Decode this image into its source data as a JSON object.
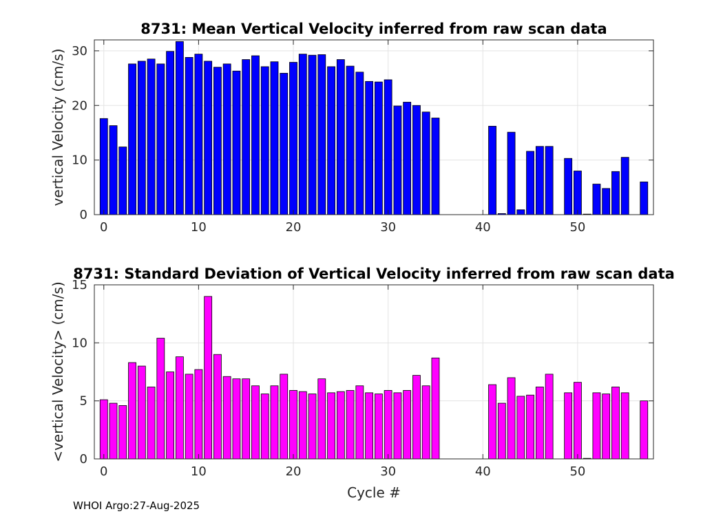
{
  "footer": "WHOI Argo:27-Aug-2025",
  "chart_data": [
    {
      "type": "bar",
      "title": "8731: Mean Vertical Velocity inferred from raw scan data",
      "xlabel": "",
      "ylabel": "vertical Velocity (cm/s)",
      "xlim": [
        -1,
        58
      ],
      "ylim": [
        0,
        32
      ],
      "xticks": [
        0,
        10,
        20,
        30,
        40,
        50
      ],
      "yticks": [
        0,
        10,
        20,
        30
      ],
      "grid": true,
      "bar_color": "#0000ff",
      "x": [
        0,
        1,
        2,
        3,
        4,
        5,
        6,
        7,
        8,
        9,
        10,
        11,
        12,
        13,
        14,
        15,
        16,
        17,
        18,
        19,
        20,
        21,
        22,
        23,
        24,
        25,
        26,
        27,
        28,
        29,
        30,
        31,
        32,
        33,
        34,
        35,
        41,
        42,
        43,
        44,
        45,
        46,
        47,
        49,
        50,
        51,
        52,
        53,
        54,
        55,
        57
      ],
      "values": [
        17.6,
        16.3,
        12.4,
        27.6,
        28.1,
        28.5,
        27.6,
        29.9,
        31.7,
        28.8,
        29.4,
        28.1,
        27.0,
        27.6,
        26.3,
        28.4,
        29.1,
        27.1,
        28.0,
        25.9,
        27.9,
        29.4,
        29.2,
        29.3,
        27.1,
        28.4,
        27.2,
        26.1,
        24.4,
        24.3,
        24.7,
        19.9,
        20.6,
        20.0,
        18.8,
        17.7,
        16.2,
        0.2,
        15.1,
        0.9,
        11.6,
        12.5,
        12.5,
        10.3,
        8.0,
        0.1,
        5.6,
        4.8,
        7.9,
        10.5,
        6.0
      ]
    },
    {
      "type": "bar",
      "title": "8731: Standard Deviation of Vertical Velocity inferred from raw scan data",
      "xlabel": "Cycle #",
      "ylabel": "<vertical Velocity> (cm/s)",
      "xlim": [
        -1,
        58
      ],
      "ylim": [
        0,
        15
      ],
      "xticks": [
        0,
        10,
        20,
        30,
        40,
        50
      ],
      "yticks": [
        0,
        5,
        10,
        15
      ],
      "grid": true,
      "bar_color": "#ff00ff",
      "x": [
        0,
        1,
        2,
        3,
        4,
        5,
        6,
        7,
        8,
        9,
        10,
        11,
        12,
        13,
        14,
        15,
        16,
        17,
        18,
        19,
        20,
        21,
        22,
        23,
        24,
        25,
        26,
        27,
        28,
        29,
        30,
        31,
        32,
        33,
        34,
        35,
        41,
        42,
        43,
        44,
        45,
        46,
        47,
        49,
        50,
        51,
        52,
        53,
        54,
        55,
        57
      ],
      "values": [
        5.1,
        4.8,
        4.6,
        8.3,
        8.0,
        6.2,
        10.4,
        7.5,
        8.8,
        7.3,
        7.7,
        14.0,
        9.0,
        7.1,
        6.9,
        6.9,
        6.3,
        5.6,
        6.3,
        7.3,
        5.9,
        5.8,
        5.6,
        6.9,
        5.7,
        5.8,
        5.9,
        6.3,
        5.7,
        5.6,
        5.9,
        5.7,
        5.9,
        7.2,
        6.3,
        8.7,
        6.4,
        4.8,
        7.0,
        5.4,
        5.5,
        6.2,
        7.3,
        5.7,
        6.6,
        0.05,
        5.7,
        5.6,
        6.2,
        5.7,
        5.0
      ]
    }
  ]
}
